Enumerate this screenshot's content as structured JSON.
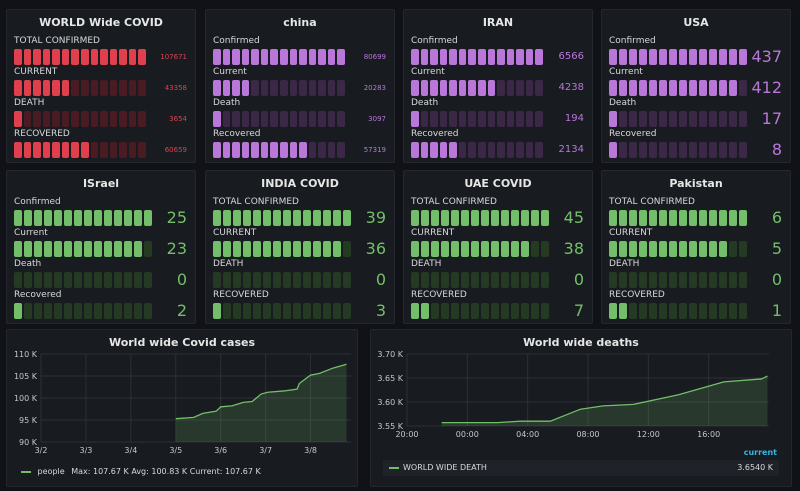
{
  "colors": {
    "red": "#e0404e",
    "red_dim": "#4a1b22",
    "purple": "#b877d9",
    "purple_dim": "#3a2846",
    "green": "#73bf69",
    "green_dim": "#243a22",
    "line": "#73bf69",
    "current_link": "#33b5e5"
  },
  "panels": [
    {
      "title": "WORLD Wide COVID",
      "color": "red",
      "max": 107671,
      "small": true,
      "rows": [
        {
          "label": "TOTAL CONFIRMED",
          "value": 107671
        },
        {
          "label": "CURRENT",
          "value": 43358
        },
        {
          "label": "DEATH",
          "value": 3654
        },
        {
          "label": "RECOVERED",
          "value": 60659
        }
      ]
    },
    {
      "title": "china",
      "color": "purple",
      "max": 80699,
      "small": true,
      "rows": [
        {
          "label": "Confirmed",
          "value": 80699
        },
        {
          "label": "Current",
          "value": 20283
        },
        {
          "label": "Death",
          "value": 3097
        },
        {
          "label": "Recovered",
          "value": 57319
        }
      ]
    },
    {
      "title": "IRAN",
      "color": "purple",
      "max": 6566,
      "small": false,
      "mid": true,
      "rows": [
        {
          "label": "Confirmed",
          "value": 6566
        },
        {
          "label": "Current",
          "value": 4238
        },
        {
          "label": "Death",
          "value": 194
        },
        {
          "label": "Recovered",
          "value": 2134
        }
      ]
    },
    {
      "title": "USA",
      "color": "purple",
      "max": 437,
      "small": false,
      "rows": [
        {
          "label": "Confirmed",
          "value": 437
        },
        {
          "label": "Current",
          "value": 412
        },
        {
          "label": "Death",
          "value": 17
        },
        {
          "label": "Recovered",
          "value": 8
        }
      ]
    },
    {
      "title": "ISrael",
      "color": "green",
      "max": 25,
      "small": false,
      "rows": [
        {
          "label": "Confirmed",
          "value": 25
        },
        {
          "label": "Current",
          "value": 23
        },
        {
          "label": "Death",
          "value": 0
        },
        {
          "label": "Recovered",
          "value": 2
        }
      ]
    },
    {
      "title": "INDIA COVID",
      "color": "green",
      "max": 39,
      "small": false,
      "rows": [
        {
          "label": "TOTAL CONFIRMED",
          "value": 39
        },
        {
          "label": "CURRENT",
          "value": 36
        },
        {
          "label": "DEATH",
          "value": 0
        },
        {
          "label": "RECOVERED",
          "value": 3
        }
      ]
    },
    {
      "title": "UAE COVID",
      "color": "green",
      "max": 45,
      "small": false,
      "rows": [
        {
          "label": "TOTAL CONFIRMED",
          "value": 45
        },
        {
          "label": "CURRENT",
          "value": 38
        },
        {
          "label": "DEATH",
          "value": 0
        },
        {
          "label": "RECOVERED",
          "value": 7
        }
      ]
    },
    {
      "title": "Pakistan",
      "color": "green",
      "max": 6,
      "small": false,
      "rows": [
        {
          "label": "TOTAL CONFIRMED",
          "value": 6
        },
        {
          "label": "CURRENT",
          "value": 5
        },
        {
          "label": "DEATH",
          "value": 0
        },
        {
          "label": "RECOVERED",
          "value": 1
        }
      ]
    }
  ],
  "chart_data": [
    {
      "type": "area",
      "title": "World wide Covid cases",
      "y_unit": "K",
      "ylim": [
        90,
        110
      ],
      "yticks": [
        "90 K",
        "95 K",
        "100 K",
        "105 K",
        "110 K"
      ],
      "xticks": [
        "3/2",
        "3/3",
        "3/4",
        "3/5",
        "3/6",
        "3/7",
        "3/8"
      ],
      "xlim": [
        2,
        8.9
      ],
      "series": [
        {
          "name": "people",
          "points": [
            [
              5.0,
              95.3
            ],
            [
              5.4,
              95.6
            ],
            [
              5.6,
              96.5
            ],
            [
              5.9,
              97.0
            ],
            [
              6.0,
              98.0
            ],
            [
              6.25,
              98.2
            ],
            [
              6.5,
              99.0
            ],
            [
              6.7,
              99.2
            ],
            [
              6.9,
              100.9
            ],
            [
              7.05,
              101.3
            ],
            [
              7.4,
              101.6
            ],
            [
              7.7,
              102.0
            ],
            [
              7.75,
              103.3
            ],
            [
              8.0,
              105.2
            ],
            [
              8.2,
              105.6
            ],
            [
              8.5,
              106.8
            ],
            [
              8.8,
              107.67
            ]
          ]
        }
      ],
      "legend": {
        "name": "people",
        "text": "Max: 107.67 K  Avg: 100.83 K  Current: 107.67 K"
      },
      "grid": true
    },
    {
      "type": "area",
      "title": "World wide deaths",
      "y_unit": "K",
      "ylim": [
        3.55,
        3.7
      ],
      "yticks": [
        "3.55 K",
        "3.60 K",
        "3.65 K",
        "3.70 K"
      ],
      "xticks": [
        "20:00",
        "00:00",
        "04:00",
        "08:00",
        "12:00",
        "16:00"
      ],
      "xlim": [
        20,
        44
      ],
      "series": [
        {
          "name": "WORLD WIDE DEATH",
          "points": [
            [
              22.3,
              3.557
            ],
            [
              26,
              3.557
            ],
            [
              27.5,
              3.56
            ],
            [
              29.5,
              3.56
            ],
            [
              31.5,
              3.585
            ],
            [
              33,
              3.592
            ],
            [
              35,
              3.595
            ],
            [
              38,
              3.615
            ],
            [
              41,
              3.642
            ],
            [
              43.5,
              3.648
            ],
            [
              43.9,
              3.654
            ]
          ]
        }
      ],
      "legend": {
        "header": "current",
        "name": "WORLD WIDE DEATH",
        "value": "3.6540 K"
      },
      "grid": true
    }
  ]
}
